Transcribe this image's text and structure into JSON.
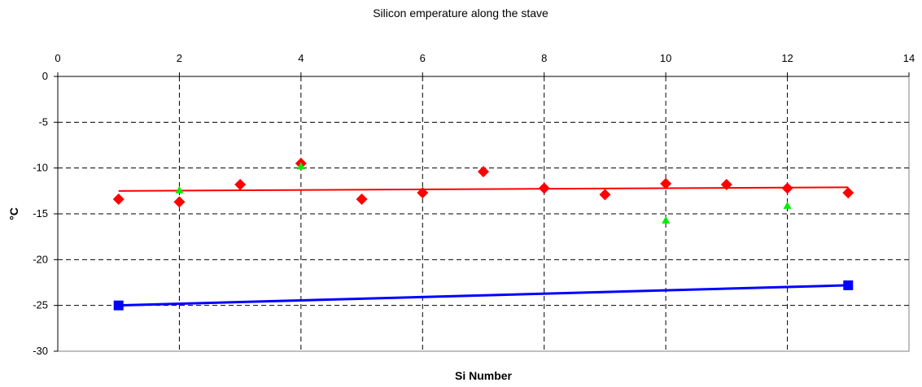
{
  "chart_data": {
    "type": "scatter",
    "title": "Silicon emperature along the stave",
    "xlabel": "Si Number",
    "ylabel": "°C",
    "xlim": [
      0,
      14
    ],
    "ylim": [
      -30,
      0
    ],
    "x_ticks": [
      0,
      2,
      4,
      6,
      8,
      10,
      12,
      14
    ],
    "y_ticks": [
      0,
      -5,
      -10,
      -15,
      -20,
      -25,
      -30
    ],
    "x_tick_labels": [
      "0",
      "2",
      "4",
      "6",
      "8",
      "10",
      "12",
      "14"
    ],
    "y_tick_labels": [
      "0",
      "-5",
      "-10",
      "-15",
      "-20",
      "-25",
      "-30"
    ],
    "x_axis_position": "top",
    "grid": true,
    "legend": false,
    "series": [
      {
        "marker": "diamond",
        "color": "#ff0000",
        "x": [
          1,
          2,
          3,
          4,
          5,
          6,
          7,
          8,
          9,
          10,
          11,
          12,
          13
        ],
        "y": [
          -13.4,
          -13.7,
          -11.8,
          -9.5,
          -13.4,
          -12.7,
          -10.4,
          -12.2,
          -12.9,
          -11.7,
          -11.8,
          -12.2,
          -12.7
        ]
      },
      {
        "marker": "triangle",
        "color": "#00ee00",
        "x": [
          2,
          4,
          10,
          12
        ],
        "y": [
          -12.4,
          -9.8,
          -15.7,
          -14.1
        ]
      },
      {
        "marker": "square",
        "color": "#0000ff",
        "x": [
          1,
          13
        ],
        "y": [
          -25.0,
          -22.8
        ]
      }
    ],
    "trendlines": [
      {
        "color": "#ff0000",
        "x": [
          1,
          13
        ],
        "y": [
          -12.5,
          -12.1
        ]
      },
      {
        "color": "#0000ff",
        "x": [
          1,
          13
        ],
        "y": [
          -25.0,
          -22.8
        ]
      }
    ]
  }
}
